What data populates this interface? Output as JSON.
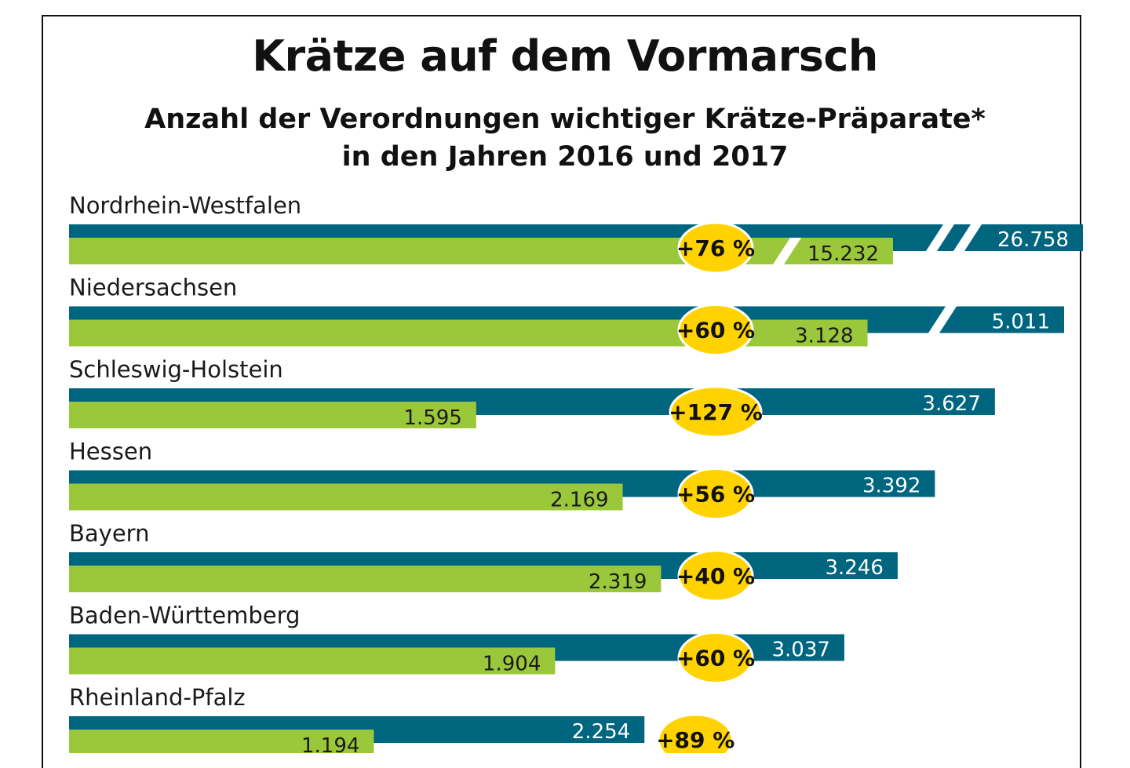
{
  "title": "Krätze auf dem Vormarsch",
  "subtitle_line1": "Anzahl der Verordnungen wichtiger Krätze-Präparate*",
  "subtitle_line2": "in den Jahren 2016 und 2017",
  "colors": {
    "y2017": "#00657F",
    "y2016": "#9BC83A",
    "badge": "#FFD200"
  },
  "chart_data": {
    "type": "bar",
    "orientation": "horizontal",
    "title": "Krätze auf dem Vormarsch",
    "subtitle": "Anzahl der Verordnungen wichtiger Krätze-Präparate* in den Jahren 2016 und 2017",
    "categories": [
      "Nordrhein-Westfalen",
      "Niedersachsen",
      "Schleswig-Holstein",
      "Hessen",
      "Bayern",
      "Baden-Württemberg",
      "Rheinland-Pfalz"
    ],
    "series": [
      {
        "key": "2016",
        "values": [
          15232,
          3128,
          1595,
          2169,
          2319,
          1904,
          1194
        ],
        "labels": [
          "15.232",
          "3.128",
          "1.595",
          "2.169",
          "2.319",
          "1.904",
          "1.194"
        ]
      },
      {
        "key": "2017",
        "values": [
          26758,
          5011,
          3627,
          3392,
          3246,
          3037,
          2254
        ],
        "labels": [
          "26.758",
          "5.011",
          "3.627",
          "3.392",
          "3.246",
          "3.037",
          "2.254"
        ]
      }
    ],
    "change_labels": [
      "+76 %",
      "+60 %",
      "+127 %",
      "+56 %",
      "+40 %",
      "+60 %",
      "+89 %"
    ],
    "broken_axis_bars": [
      "Nordrhein-Westfalen 2016",
      "Nordrhein-Westfalen 2017",
      "Niedersachsen 2017"
    ]
  }
}
